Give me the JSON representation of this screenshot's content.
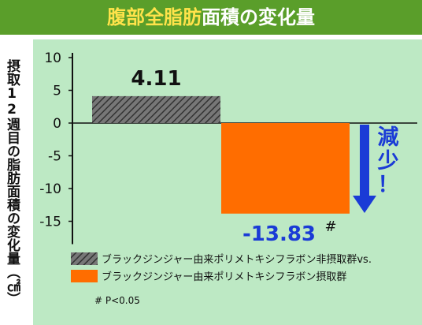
{
  "title": {
    "highlight": "腹部全脂肪",
    "rest": "面積の変化量"
  },
  "ylabel": "摂取12週目の脂肪面積の変化量（㎠）",
  "chart_data": {
    "type": "bar",
    "categories": [
      "ブラックジンジャー由来ポリメトキシフラボン非摂取群vs.",
      "ブラックジンジャー由来ポリメトキシフラボン摂取群"
    ],
    "values": [
      4.11,
      -13.83
    ],
    "data_labels": [
      "4.11",
      "-13.83"
    ],
    "significance_mark": "#",
    "footnote": "# P<0.05",
    "annotation": "減少！",
    "yticks": [
      10,
      5,
      0,
      -5,
      -10,
      -15
    ],
    "ytick_labels": [
      "10",
      "5",
      "0",
      "-5",
      "-10",
      "-15"
    ],
    "ylim": [
      -18.5,
      10
    ],
    "colors": {
      "control": "#555555",
      "treatment": "#ff6d00",
      "arrow": "#1a3bd6",
      "bg": "#bde9c4"
    }
  }
}
